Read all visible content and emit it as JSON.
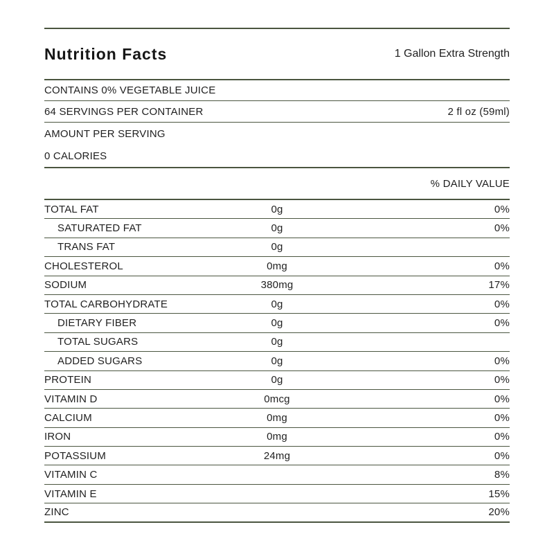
{
  "colors": {
    "rule": "#4a553f",
    "text": "#1f1f1f",
    "background": "#ffffff"
  },
  "header": {
    "title": "Nutrition Facts",
    "variant": "1 Gallon Extra Strength"
  },
  "info": {
    "contains": "CONTAINS 0% VEGETABLE JUICE",
    "servings_per_container": "64 SERVINGS PER CONTAINER",
    "serving_size": "2 fl oz (59ml)",
    "amount_per_serving": "AMOUNT PER SERVING",
    "calories": "0 CALORIES",
    "daily_value_header": "% DAILY VALUE"
  },
  "nutrients": [
    {
      "label": "TOTAL FAT",
      "amount": "0g",
      "dv": "0%",
      "indent": false
    },
    {
      "label": "SATURATED FAT",
      "amount": "0g",
      "dv": "0%",
      "indent": true
    },
    {
      "label": "TRANS FAT",
      "amount": "0g",
      "dv": "",
      "indent": true
    },
    {
      "label": "CHOLESTEROL",
      "amount": "0mg",
      "dv": "0%",
      "indent": false
    },
    {
      "label": "SODIUM",
      "amount": "380mg",
      "dv": "17%",
      "indent": false
    },
    {
      "label": "TOTAL CARBOHYDRATE",
      "amount": "0g",
      "dv": "0%",
      "indent": false
    },
    {
      "label": "DIETARY FIBER",
      "amount": "0g",
      "dv": "0%",
      "indent": true
    },
    {
      "label": "TOTAL SUGARS",
      "amount": "0g",
      "dv": "",
      "indent": true
    },
    {
      "label": "ADDED SUGARS",
      "amount": "0g",
      "dv": "0%",
      "indent": true
    },
    {
      "label": "PROTEIN",
      "amount": "0g",
      "dv": "0%",
      "indent": false
    },
    {
      "label": "VITAMIN D",
      "amount": "0mcg",
      "dv": "0%",
      "indent": false
    },
    {
      "label": "CALCIUM",
      "amount": "0mg",
      "dv": "0%",
      "indent": false
    },
    {
      "label": "IRON",
      "amount": "0mg",
      "dv": "0%",
      "indent": false
    },
    {
      "label": "POTASSIUM",
      "amount": "24mg",
      "dv": "0%",
      "indent": false
    },
    {
      "label": "VITAMIN C",
      "amount": "",
      "dv": "8%",
      "indent": false
    },
    {
      "label": "VITAMIN E",
      "amount": "",
      "dv": "15%",
      "indent": false
    },
    {
      "label": "ZINC",
      "amount": "",
      "dv": "20%",
      "indent": false
    }
  ]
}
